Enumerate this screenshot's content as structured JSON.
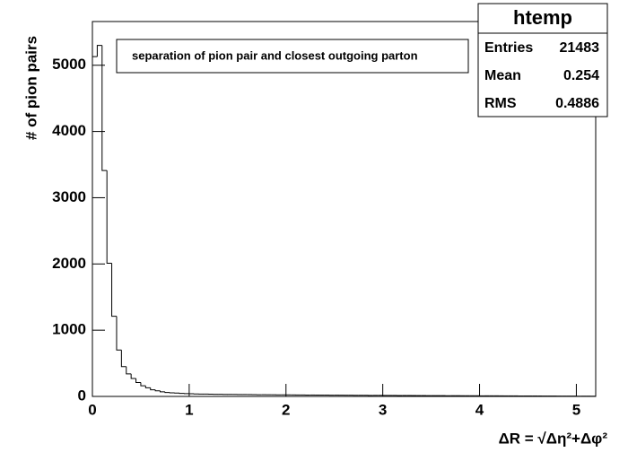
{
  "chart_data": {
    "type": "histogram",
    "annotation": "separation of pion pair and closest outgoing parton",
    "x_label": "ΔR = √Δη²+Δφ²",
    "y_label": "# of pion pairs",
    "stats": {
      "title": "htemp",
      "rows": [
        [
          "Entries",
          21483
        ],
        [
          "Mean",
          0.254
        ],
        [
          "RMS",
          0.4886
        ]
      ]
    },
    "bins": [
      0,
      0.05,
      0.1,
      0.15,
      0.2,
      0.25,
      0.3,
      0.35,
      0.4,
      0.45,
      0.5,
      0.55,
      0.6,
      0.65,
      0.7,
      0.75,
      0.8,
      0.85,
      0.9,
      0.95,
      1,
      1.05,
      1.1,
      1.15,
      1.2,
      1.25,
      1.3,
      1.35,
      1.4,
      1.45,
      1.5,
      1.55,
      1.6,
      1.65,
      1.7,
      1.75,
      1.8,
      1.85,
      1.9,
      1.95,
      2,
      2.05,
      2.1,
      2.15,
      2.2,
      2.25,
      2.3,
      2.35,
      2.4,
      2.45,
      2.5,
      2.55,
      2.6,
      2.65,
      2.7,
      2.75,
      2.8,
      2.85,
      2.9,
      2.95,
      3,
      3.05,
      3.1,
      3.15,
      3.2,
      3.25,
      3.3,
      3.35,
      3.4,
      3.45,
      3.5,
      3.55,
      3.6,
      3.65,
      3.7,
      3.75,
      3.8,
      3.85,
      3.9,
      3.95,
      4,
      4.05,
      4.1,
      4.15,
      4.2,
      4.25,
      4.3,
      4.35,
      4.4,
      4.45,
      4.5,
      4.55,
      4.6,
      4.65,
      4.7,
      4.75,
      4.8,
      4.85,
      4.9,
      4.95,
      5,
      5.05,
      5.1,
      5.15,
      5.2
    ],
    "values": [
      5130,
      5300,
      3410,
      2010,
      1210,
      700,
      450,
      340,
      270,
      210,
      160,
      130,
      100,
      85,
      70,
      60,
      55,
      50,
      45,
      42,
      40,
      38,
      36,
      35,
      34,
      33,
      32,
      31,
      30,
      30,
      29,
      28,
      28,
      27,
      26,
      26,
      25,
      25,
      24,
      24,
      23,
      23,
      22,
      22,
      21,
      21,
      20,
      20,
      20,
      19,
      19,
      18,
      18,
      18,
      17,
      17,
      17,
      16,
      16,
      16,
      15,
      15,
      15,
      14,
      14,
      14,
      13,
      13,
      13,
      12,
      12,
      12,
      12,
      11,
      11,
      11,
      10,
      10,
      10,
      10,
      9,
      9,
      9,
      9,
      8,
      8,
      8,
      8,
      7,
      7,
      7,
      7,
      6,
      6,
      6,
      6,
      5,
      5,
      5,
      5,
      4,
      4,
      4,
      4
    ],
    "color": "#000000",
    "xlim": [
      0,
      5.2
    ],
    "xticks": [
      0,
      1,
      2,
      3,
      4,
      5
    ],
    "ylim": [
      0,
      5660
    ],
    "yticks": [
      0,
      1000,
      2000,
      3000,
      4000,
      5000
    ]
  }
}
